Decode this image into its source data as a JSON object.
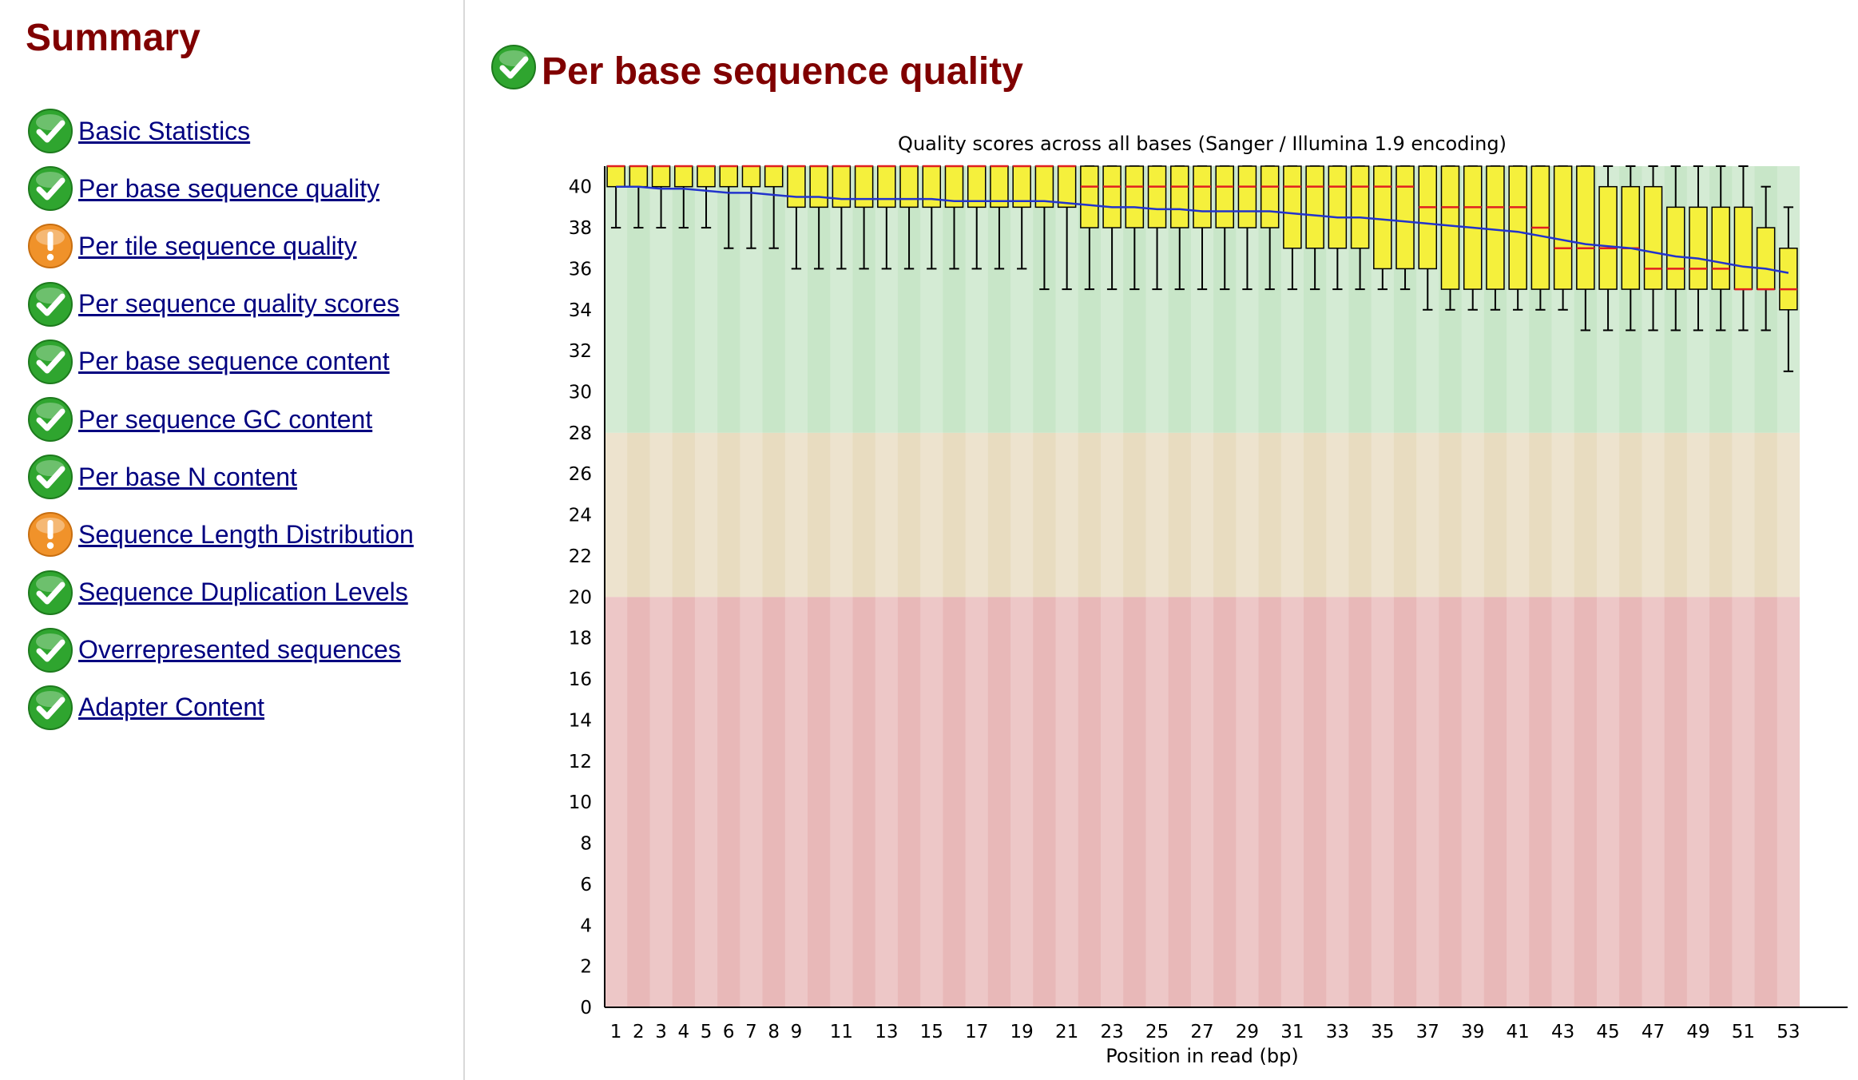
{
  "summary": {
    "title": "Summary",
    "items": [
      {
        "label": "Basic Statistics",
        "status": "pass"
      },
      {
        "label": "Per base sequence quality",
        "status": "pass"
      },
      {
        "label": "Per tile sequence quality",
        "status": "warn"
      },
      {
        "label": "Per sequence quality scores",
        "status": "pass"
      },
      {
        "label": "Per base sequence content",
        "status": "pass"
      },
      {
        "label": "Per sequence GC content",
        "status": "pass"
      },
      {
        "label": "Per base N content",
        "status": "pass"
      },
      {
        "label": "Sequence Length Distribution",
        "status": "warn"
      },
      {
        "label": "Sequence Duplication Levels",
        "status": "pass"
      },
      {
        "label": "Overrepresented sequences",
        "status": "pass"
      },
      {
        "label": "Adapter Content",
        "status": "pass"
      }
    ]
  },
  "module": {
    "title": "Per base sequence quality",
    "status": "pass"
  },
  "colors": {
    "heading": "#800000",
    "link": "#000080",
    "pass": "#2fa52f",
    "warn": "#f0922a",
    "box": "#f5f03c",
    "median": "#e02020",
    "mean": "#2233cc",
    "zone_good": "#c8e6c8",
    "zone_warn": "#e8dcc0",
    "zone_bad": "#e8b8b8"
  },
  "chart_data": {
    "type": "boxplot",
    "title": "Quality scores across all bases (Sanger / Illumina 1.9 encoding)",
    "xlabel": "Position in read (bp)",
    "ylabel": "",
    "ylim": [
      0,
      41
    ],
    "yticks": [
      0,
      2,
      4,
      6,
      8,
      10,
      12,
      14,
      16,
      18,
      20,
      22,
      24,
      26,
      28,
      30,
      32,
      34,
      36,
      38,
      40
    ],
    "xtick_labels": [
      "1",
      "2",
      "3",
      "4",
      "5",
      "6",
      "7",
      "8",
      "9",
      "11",
      "13",
      "15",
      "17",
      "19",
      "21",
      "23",
      "25",
      "27",
      "29",
      "31",
      "33",
      "35",
      "37",
      "39",
      "41",
      "43",
      "45",
      "47",
      "49",
      "51",
      "53"
    ],
    "bands": [
      {
        "from": 28,
        "to": 41,
        "zone": "good"
      },
      {
        "from": 20,
        "to": 28,
        "zone": "warn"
      },
      {
        "from": 0,
        "to": 20,
        "zone": "bad"
      }
    ],
    "positions": [
      1,
      2,
      3,
      4,
      5,
      6,
      7,
      8,
      9,
      10,
      11,
      12,
      13,
      14,
      15,
      16,
      17,
      18,
      19,
      20,
      21,
      22,
      23,
      24,
      25,
      26,
      27,
      28,
      29,
      30,
      31,
      32,
      33,
      34,
      35,
      36,
      37,
      38,
      39,
      40,
      41,
      42,
      43,
      44,
      45,
      46,
      47,
      48,
      49,
      50,
      51,
      52,
      53
    ],
    "lower_whisker": [
      38,
      38,
      38,
      38,
      38,
      37,
      37,
      37,
      36,
      36,
      36,
      36,
      36,
      36,
      36,
      36,
      36,
      36,
      36,
      35,
      35,
      35,
      35,
      35,
      35,
      35,
      35,
      35,
      35,
      35,
      35,
      35,
      35,
      35,
      35,
      35,
      34,
      34,
      34,
      34,
      34,
      34,
      34,
      33,
      33,
      33,
      33,
      33,
      33,
      33,
      33,
      33,
      31
    ],
    "lower_quartile": [
      40,
      40,
      40,
      40,
      40,
      40,
      40,
      40,
      39,
      39,
      39,
      39,
      39,
      39,
      39,
      39,
      39,
      39,
      39,
      39,
      39,
      38,
      38,
      38,
      38,
      38,
      38,
      38,
      38,
      38,
      37,
      37,
      37,
      37,
      36,
      36,
      36,
      35,
      35,
      35,
      35,
      35,
      35,
      35,
      35,
      35,
      35,
      35,
      35,
      35,
      35,
      35,
      34
    ],
    "median": [
      41,
      41,
      41,
      41,
      41,
      41,
      41,
      41,
      41,
      41,
      41,
      41,
      41,
      41,
      41,
      41,
      41,
      41,
      41,
      41,
      41,
      40,
      40,
      40,
      40,
      40,
      40,
      40,
      40,
      40,
      40,
      40,
      40,
      40,
      40,
      40,
      39,
      39,
      39,
      39,
      39,
      38,
      37,
      37,
      37,
      37,
      36,
      36,
      36,
      36,
      35,
      35,
      35
    ],
    "upper_quartile": [
      41,
      41,
      41,
      41,
      41,
      41,
      41,
      41,
      41,
      41,
      41,
      41,
      41,
      41,
      41,
      41,
      41,
      41,
      41,
      41,
      41,
      41,
      41,
      41,
      41,
      41,
      41,
      41,
      41,
      41,
      41,
      41,
      41,
      41,
      41,
      41,
      41,
      41,
      41,
      41,
      41,
      41,
      41,
      41,
      40,
      40,
      40,
      39,
      39,
      39,
      39,
      38,
      37
    ],
    "upper_whisker": [
      41,
      41,
      41,
      41,
      41,
      41,
      41,
      41,
      41,
      41,
      41,
      41,
      41,
      41,
      41,
      41,
      41,
      41,
      41,
      41,
      41,
      41,
      41,
      41,
      41,
      41,
      41,
      41,
      41,
      41,
      41,
      41,
      41,
      41,
      41,
      41,
      41,
      41,
      41,
      41,
      41,
      41,
      41,
      41,
      41,
      41,
      41,
      41,
      41,
      41,
      41,
      40,
      39
    ],
    "mean": [
      40.0,
      40.0,
      39.9,
      39.9,
      39.8,
      39.7,
      39.7,
      39.6,
      39.5,
      39.5,
      39.4,
      39.4,
      39.4,
      39.4,
      39.4,
      39.3,
      39.3,
      39.3,
      39.3,
      39.3,
      39.2,
      39.1,
      39.0,
      39.0,
      38.9,
      38.9,
      38.8,
      38.8,
      38.8,
      38.8,
      38.7,
      38.6,
      38.5,
      38.5,
      38.4,
      38.3,
      38.2,
      38.1,
      38.0,
      37.9,
      37.8,
      37.6,
      37.4,
      37.2,
      37.1,
      37.0,
      36.8,
      36.6,
      36.5,
      36.3,
      36.1,
      36.0,
      35.8
    ]
  }
}
